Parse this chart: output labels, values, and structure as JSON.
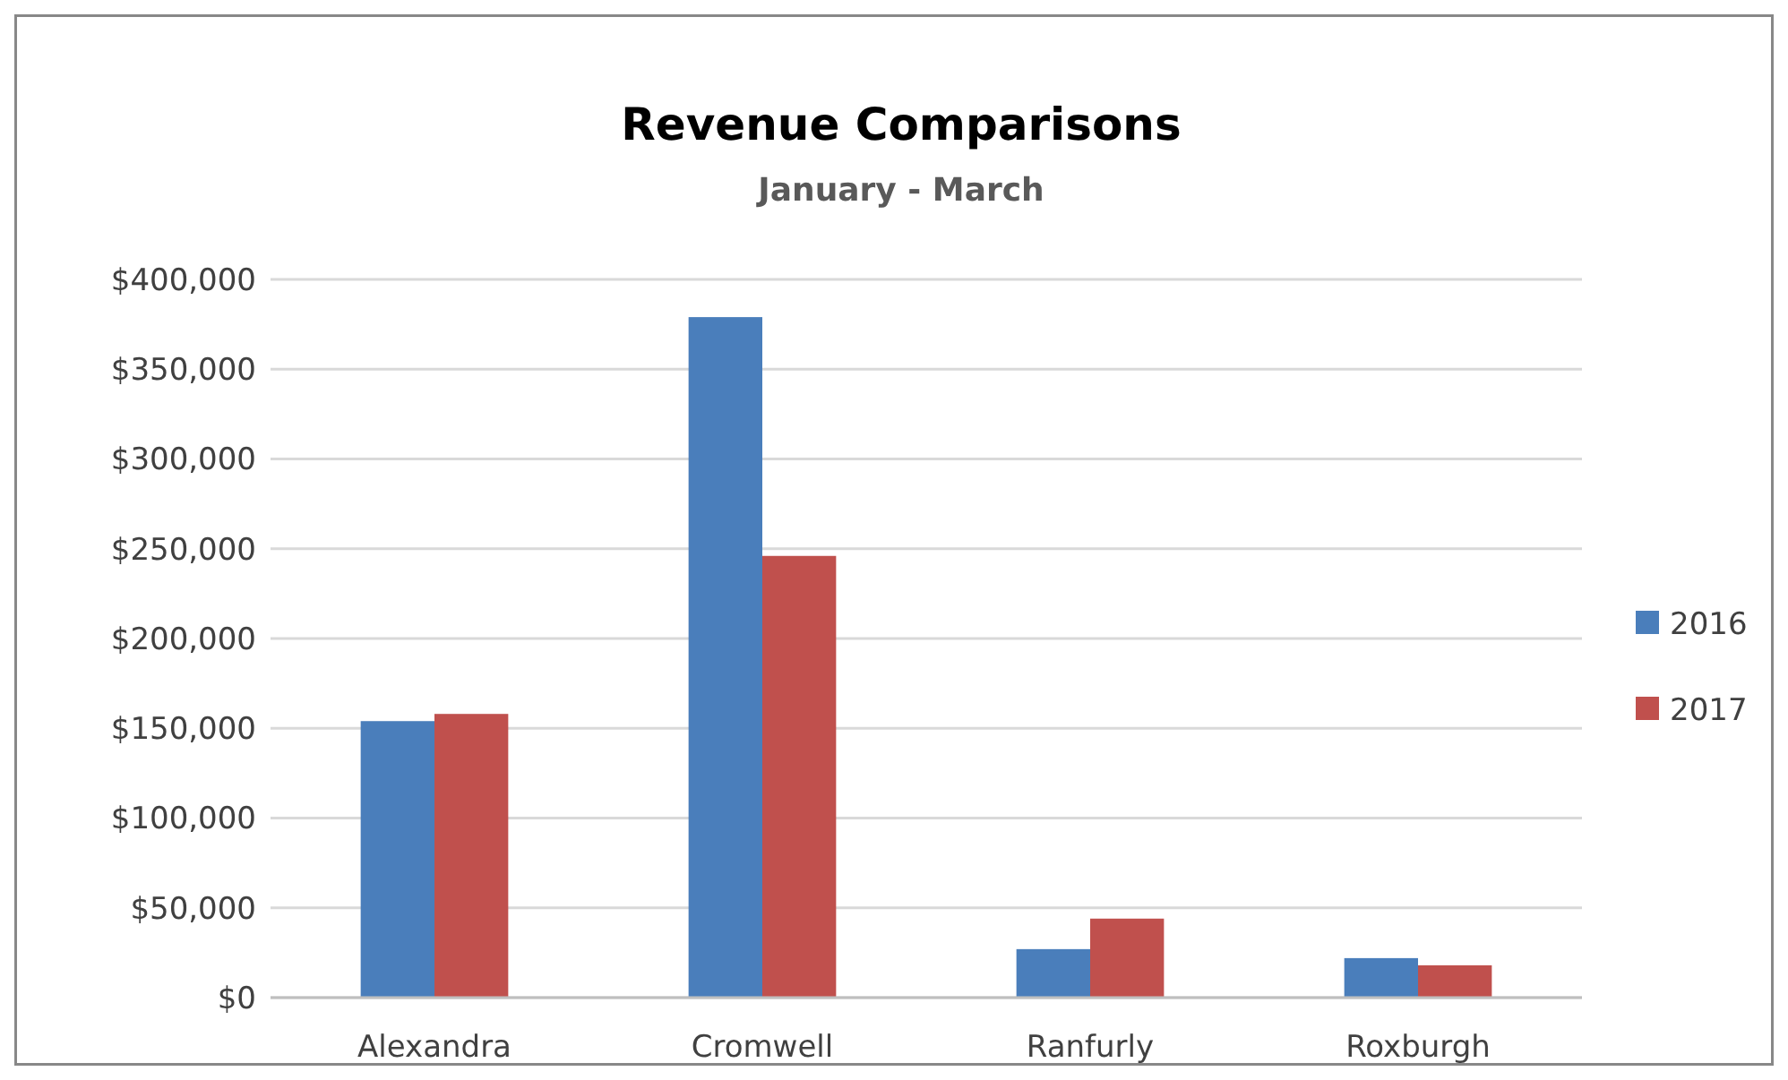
{
  "chart_data": {
    "type": "bar",
    "title": "Revenue Comparisons",
    "subtitle": "January - March",
    "categories": [
      "Alexandra",
      "Cromwell",
      "Ranfurly",
      "Roxburgh"
    ],
    "series": [
      {
        "name": "2016",
        "color": "#4a7ebb",
        "values": [
          154000,
          379000,
          27000,
          22000
        ]
      },
      {
        "name": "2017",
        "color": "#c0504d",
        "values": [
          158000,
          246000,
          44000,
          18000
        ]
      }
    ],
    "ylim": [
      0,
      400000
    ],
    "yticks": [
      {
        "value": 0,
        "label": "$0"
      },
      {
        "value": 50000,
        "label": "$50,000"
      },
      {
        "value": 100000,
        "label": "$100,000"
      },
      {
        "value": 150000,
        "label": "$150,000"
      },
      {
        "value": 200000,
        "label": "$200,000"
      },
      {
        "value": 250000,
        "label": "$250,000"
      },
      {
        "value": 300000,
        "label": "$300,000"
      },
      {
        "value": 350000,
        "label": "$350,000"
      },
      {
        "value": 400000,
        "label": "$400,000"
      }
    ],
    "grid": "y",
    "legend": "right"
  }
}
